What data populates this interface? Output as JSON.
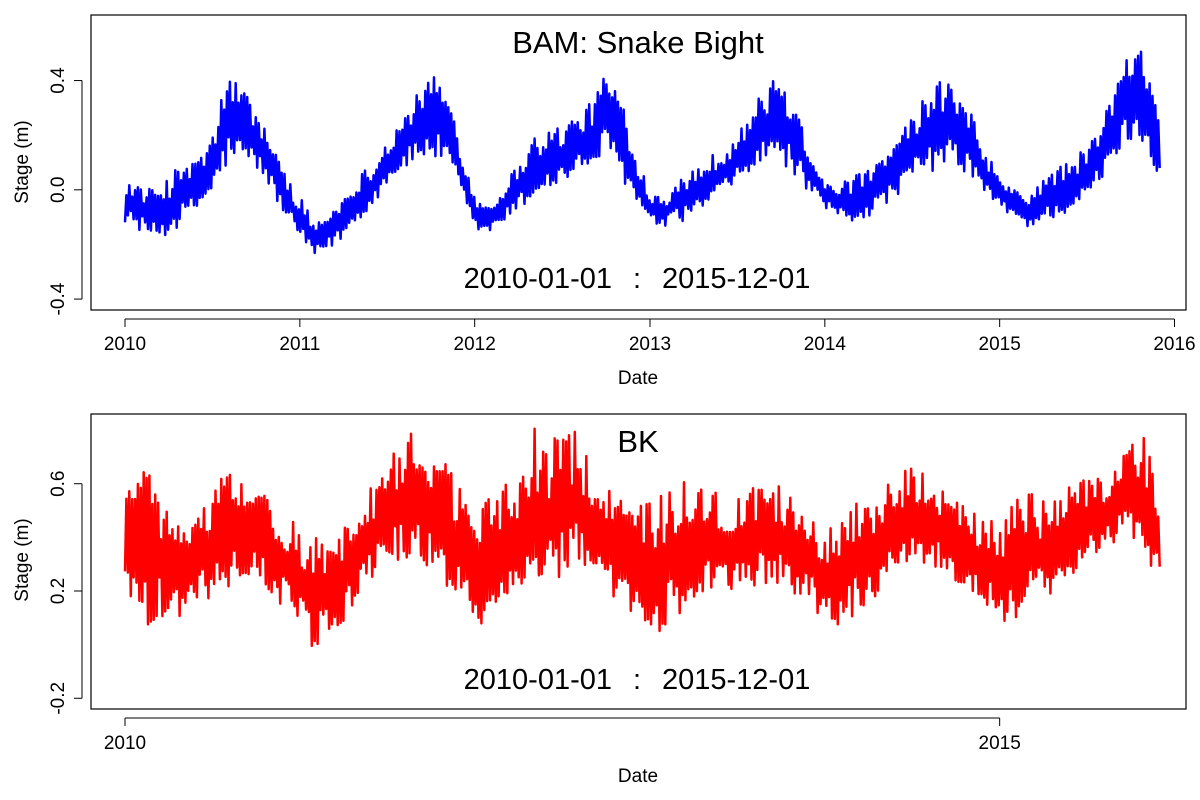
{
  "chart_data": [
    {
      "type": "line",
      "title": "BAM: Snake Bight",
      "annotation": {
        "start": "2010-01-01",
        "separator": ":",
        "end": "2015-12-01"
      },
      "xlabel": "Date",
      "ylabel": "Stage (m)",
      "x_axis_type": "date",
      "xlim": [
        "2009-10-22",
        "2016-01-25"
      ],
      "ylim": [
        -0.44,
        0.64
      ],
      "x_ticks": [
        "2010",
        "2011",
        "2012",
        "2013",
        "2014",
        "2015",
        "2016"
      ],
      "y_ticks": [
        "-0.4",
        "0.0",
        "0.4"
      ],
      "grid": false,
      "legend": "none",
      "series": [
        {
          "color": "#0000ff",
          "line_width": 2.5,
          "sampling": "daily envelope (min/max per 6-day interval)",
          "x": [
            "2010-01-01",
            "2010-02-01",
            "2010-03-01",
            "2010-04-01",
            "2010-05-01",
            "2010-06-01",
            "2010-07-01",
            "2010-08-01",
            "2010-09-01",
            "2010-10-01",
            "2010-11-01",
            "2010-12-01",
            "2011-01-01",
            "2011-02-01",
            "2011-03-01",
            "2011-04-01",
            "2011-05-01",
            "2011-06-01",
            "2011-07-01",
            "2011-08-01",
            "2011-09-01",
            "2011-10-01",
            "2011-11-01",
            "2011-12-01",
            "2012-01-01",
            "2012-02-01",
            "2012-03-01",
            "2012-04-01",
            "2012-05-01",
            "2012-06-01",
            "2012-07-01",
            "2012-08-01",
            "2012-09-01",
            "2012-10-01",
            "2012-11-01",
            "2012-12-01",
            "2013-01-01",
            "2013-02-01",
            "2013-03-01",
            "2013-04-01",
            "2013-05-01",
            "2013-06-01",
            "2013-07-01",
            "2013-08-01",
            "2013-09-01",
            "2013-10-01",
            "2013-11-01",
            "2013-12-01",
            "2014-01-01",
            "2014-02-01",
            "2014-03-01",
            "2014-04-01",
            "2014-05-01",
            "2014-06-01",
            "2014-07-01",
            "2014-08-01",
            "2014-09-01",
            "2014-10-01",
            "2014-11-01",
            "2014-12-01",
            "2015-01-01",
            "2015-02-01",
            "2015-03-01",
            "2015-04-01",
            "2015-05-01",
            "2015-06-01",
            "2015-07-01",
            "2015-08-01",
            "2015-09-01",
            "2015-10-01",
            "2015-11-01",
            "2015-12-01"
          ],
          "y_min": [
            -0.12,
            -0.15,
            -0.18,
            -0.17,
            -0.12,
            -0.08,
            -0.02,
            0.08,
            0.1,
            0.08,
            0.0,
            -0.1,
            -0.18,
            -0.25,
            -0.22,
            -0.18,
            -0.12,
            -0.06,
            0.02,
            0.07,
            0.1,
            0.12,
            0.08,
            -0.02,
            -0.15,
            -0.16,
            -0.12,
            -0.08,
            -0.04,
            0.0,
            0.02,
            0.05,
            0.08,
            0.12,
            0.05,
            -0.05,
            -0.13,
            -0.14,
            -0.12,
            -0.1,
            -0.06,
            -0.02,
            0.02,
            0.06,
            0.1,
            0.1,
            0.05,
            -0.02,
            -0.08,
            -0.1,
            -0.12,
            -0.1,
            -0.06,
            -0.02,
            0.02,
            0.06,
            0.08,
            0.08,
            0.05,
            -0.02,
            -0.07,
            -0.1,
            -0.14,
            -0.12,
            -0.1,
            -0.08,
            -0.04,
            0.02,
            0.12,
            0.18,
            0.15,
            0.05
          ],
          "y_max": [
            0.05,
            0.02,
            0.0,
            0.05,
            0.1,
            0.12,
            0.18,
            0.45,
            0.38,
            0.3,
            0.2,
            0.06,
            -0.02,
            -0.12,
            -0.08,
            -0.02,
            0.05,
            0.1,
            0.18,
            0.26,
            0.35,
            0.42,
            0.4,
            0.2,
            -0.02,
            -0.05,
            0.02,
            0.1,
            0.2,
            0.22,
            0.24,
            0.28,
            0.32,
            0.45,
            0.35,
            0.15,
            0.0,
            -0.02,
            0.05,
            0.08,
            0.12,
            0.15,
            0.2,
            0.3,
            0.38,
            0.42,
            0.32,
            0.15,
            0.05,
            0.02,
            0.05,
            0.08,
            0.12,
            0.18,
            0.28,
            0.35,
            0.4,
            0.38,
            0.3,
            0.15,
            0.05,
            0.0,
            -0.02,
            0.05,
            0.08,
            0.12,
            0.15,
            0.25,
            0.4,
            0.52,
            0.5,
            0.28
          ]
        }
      ]
    },
    {
      "type": "line",
      "title": "BK",
      "annotation": {
        "start": "2010-01-01",
        "separator": ":",
        "end": "2015-12-01"
      },
      "xlabel": "Date",
      "ylabel": "Stage (m)",
      "x_axis_type": "date",
      "xlim": [
        "2009-10-22",
        "2016-01-25"
      ],
      "ylim": [
        -0.24,
        0.86
      ],
      "x_ticks": [
        "2010",
        "2015"
      ],
      "y_ticks": [
        "-0.2",
        "0.2",
        "0.6"
      ],
      "grid": false,
      "legend": "none",
      "series": [
        {
          "color": "#ff0000",
          "line_width": 2.5,
          "sampling": "daily envelope (min/max per 6-day interval)",
          "x": [
            "2010-01-01",
            "2010-02-01",
            "2010-03-01",
            "2010-04-01",
            "2010-05-01",
            "2010-06-01",
            "2010-07-01",
            "2010-08-01",
            "2010-09-01",
            "2010-10-01",
            "2010-11-01",
            "2010-12-01",
            "2011-01-01",
            "2011-02-01",
            "2011-03-01",
            "2011-04-01",
            "2011-05-01",
            "2011-06-01",
            "2011-07-01",
            "2011-08-01",
            "2011-09-01",
            "2011-10-01",
            "2011-11-01",
            "2011-12-01",
            "2012-01-01",
            "2012-02-01",
            "2012-03-01",
            "2012-04-01",
            "2012-05-01",
            "2012-06-01",
            "2012-07-01",
            "2012-08-01",
            "2012-09-01",
            "2012-10-01",
            "2012-11-01",
            "2012-12-01",
            "2013-01-01",
            "2013-02-01",
            "2013-03-01",
            "2013-04-01",
            "2013-05-01",
            "2013-06-01",
            "2013-07-01",
            "2013-08-01",
            "2013-09-01",
            "2013-10-01",
            "2013-11-01",
            "2013-12-01",
            "2014-01-01",
            "2014-02-01",
            "2014-03-01",
            "2014-04-01",
            "2014-05-01",
            "2014-06-01",
            "2014-07-01",
            "2014-08-01",
            "2014-09-01",
            "2014-10-01",
            "2014-11-01",
            "2014-12-01",
            "2015-01-01",
            "2015-02-01",
            "2015-03-01",
            "2015-04-01",
            "2015-05-01",
            "2015-06-01",
            "2015-07-01",
            "2015-08-01",
            "2015-09-01",
            "2015-10-01",
            "2015-11-01",
            "2015-12-01"
          ],
          "y_min": [
            0.22,
            0.1,
            0.05,
            0.08,
            0.1,
            0.15,
            0.18,
            0.2,
            0.2,
            0.22,
            0.18,
            0.12,
            0.05,
            -0.05,
            0.05,
            0.08,
            0.15,
            0.25,
            0.28,
            0.3,
            0.3,
            0.28,
            0.2,
            0.15,
            0.05,
            0.1,
            0.15,
            0.2,
            0.22,
            0.25,
            0.25,
            0.28,
            0.2,
            0.18,
            0.12,
            0.08,
            0.0,
            0.05,
            0.1,
            0.15,
            0.2,
            0.22,
            0.2,
            0.22,
            0.22,
            0.2,
            0.18,
            0.15,
            0.05,
            0.05,
            0.1,
            0.15,
            0.2,
            0.22,
            0.28,
            0.3,
            0.28,
            0.22,
            0.18,
            0.15,
            0.1,
            0.05,
            0.12,
            0.15,
            0.2,
            0.25,
            0.3,
            0.32,
            0.38,
            0.4,
            0.3,
            0.25
          ],
          "y_max": [
            0.6,
            0.62,
            0.7,
            0.48,
            0.45,
            0.5,
            0.55,
            0.7,
            0.62,
            0.6,
            0.55,
            0.5,
            0.45,
            0.4,
            0.42,
            0.45,
            0.55,
            0.6,
            0.65,
            0.78,
            0.82,
            0.72,
            0.68,
            0.62,
            0.55,
            0.58,
            0.6,
            0.62,
            0.82,
            0.72,
            0.82,
            0.8,
            0.65,
            0.58,
            0.55,
            0.5,
            0.55,
            0.58,
            0.6,
            0.62,
            0.6,
            0.55,
            0.55,
            0.6,
            0.58,
            0.6,
            0.55,
            0.5,
            0.45,
            0.48,
            0.52,
            0.55,
            0.6,
            0.62,
            0.68,
            0.65,
            0.6,
            0.55,
            0.5,
            0.48,
            0.45,
            0.55,
            0.58,
            0.55,
            0.55,
            0.6,
            0.62,
            0.65,
            0.68,
            0.75,
            0.8,
            0.52
          ]
        }
      ]
    }
  ]
}
